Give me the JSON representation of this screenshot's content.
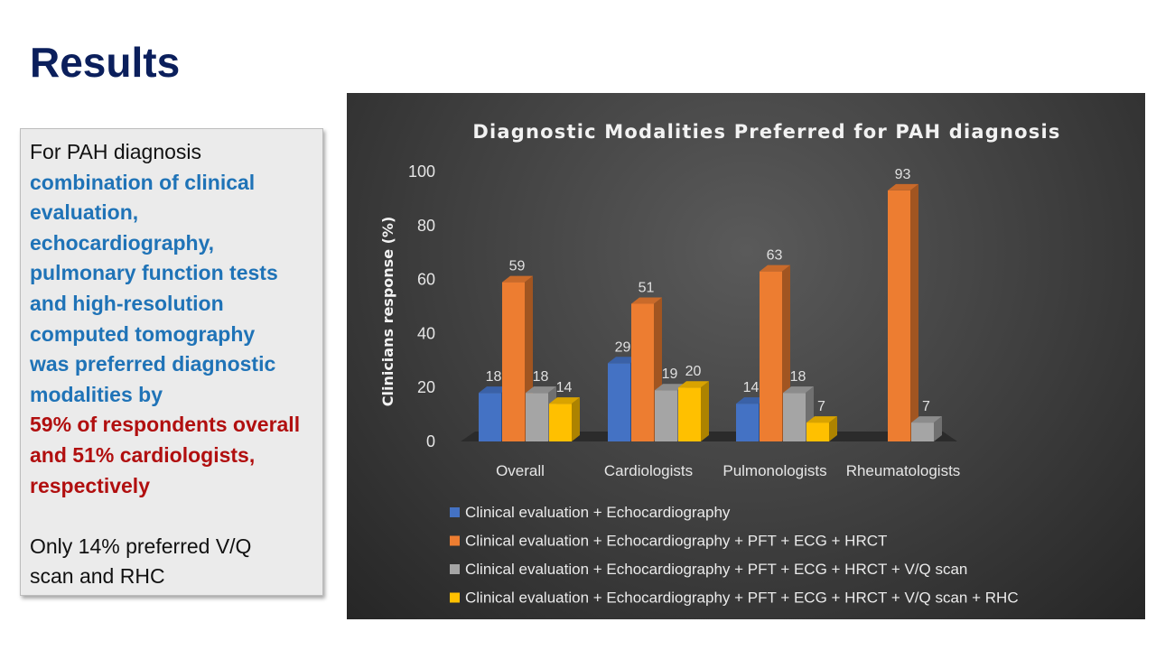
{
  "slide": {
    "title": "Results"
  },
  "summary": {
    "lines": [
      {
        "text": "For PAH diagnosis",
        "style": "plain"
      },
      {
        "text": "combination of clinical",
        "style": "blue"
      },
      {
        "text": "evaluation,",
        "style": "blue"
      },
      {
        "text": "echocardiography,",
        "style": "blue"
      },
      {
        "text": "pulmonary function tests",
        "style": "blue"
      },
      {
        "text": "and high-resolution",
        "style": "blue"
      },
      {
        "text": "computed tomography",
        "style": "blue"
      },
      {
        "text": "was preferred diagnostic",
        "style": "blue"
      },
      {
        "text": "modalities by",
        "style": "blue"
      },
      {
        "text": "59% of respondents overall",
        "style": "red"
      },
      {
        "text": "and  51% cardiologists,",
        "style": "red"
      },
      {
        "text": "respectively",
        "style": "red"
      },
      {
        "text": "",
        "style": "spacer"
      },
      {
        "text": "Only 14% preferred V/Q",
        "style": "plain"
      },
      {
        "text": "scan and RHC",
        "style": "plain"
      }
    ]
  },
  "chart_data": {
    "type": "bar",
    "title": "Diagnostic  Modalities  Preferred  for  PAH diagnosis",
    "ylabel": "Clinicians  response  (%)",
    "xlabel": "",
    "ylim": [
      0,
      100
    ],
    "yticks": [
      0,
      20,
      40,
      60,
      80,
      100
    ],
    "categories": [
      "Overall",
      "Cardiologists",
      "Pulmonologists",
      "Rheumatologists"
    ],
    "legend_position": "bottom",
    "series": [
      {
        "name": "Clinical evaluation + Echocardiography",
        "color": "#4472c4",
        "values": [
          18,
          29,
          14,
          null
        ]
      },
      {
        "name": "Clinical evaluation + Echocardiography + PFT + ECG + HRCT",
        "color": "#ed7d31",
        "values": [
          59,
          51,
          63,
          93
        ]
      },
      {
        "name": "Clinical evaluation + Echocardiography + PFT + ECG + HRCT + V/Q scan",
        "color": "#a5a5a5",
        "values": [
          18,
          19,
          18,
          7
        ]
      },
      {
        "name": "Clinical evaluation + Echocardiography + PFT + ECG + HRCT + V/Q scan + RHC",
        "color": "#ffc000",
        "values": [
          14,
          20,
          7,
          null
        ]
      }
    ]
  }
}
